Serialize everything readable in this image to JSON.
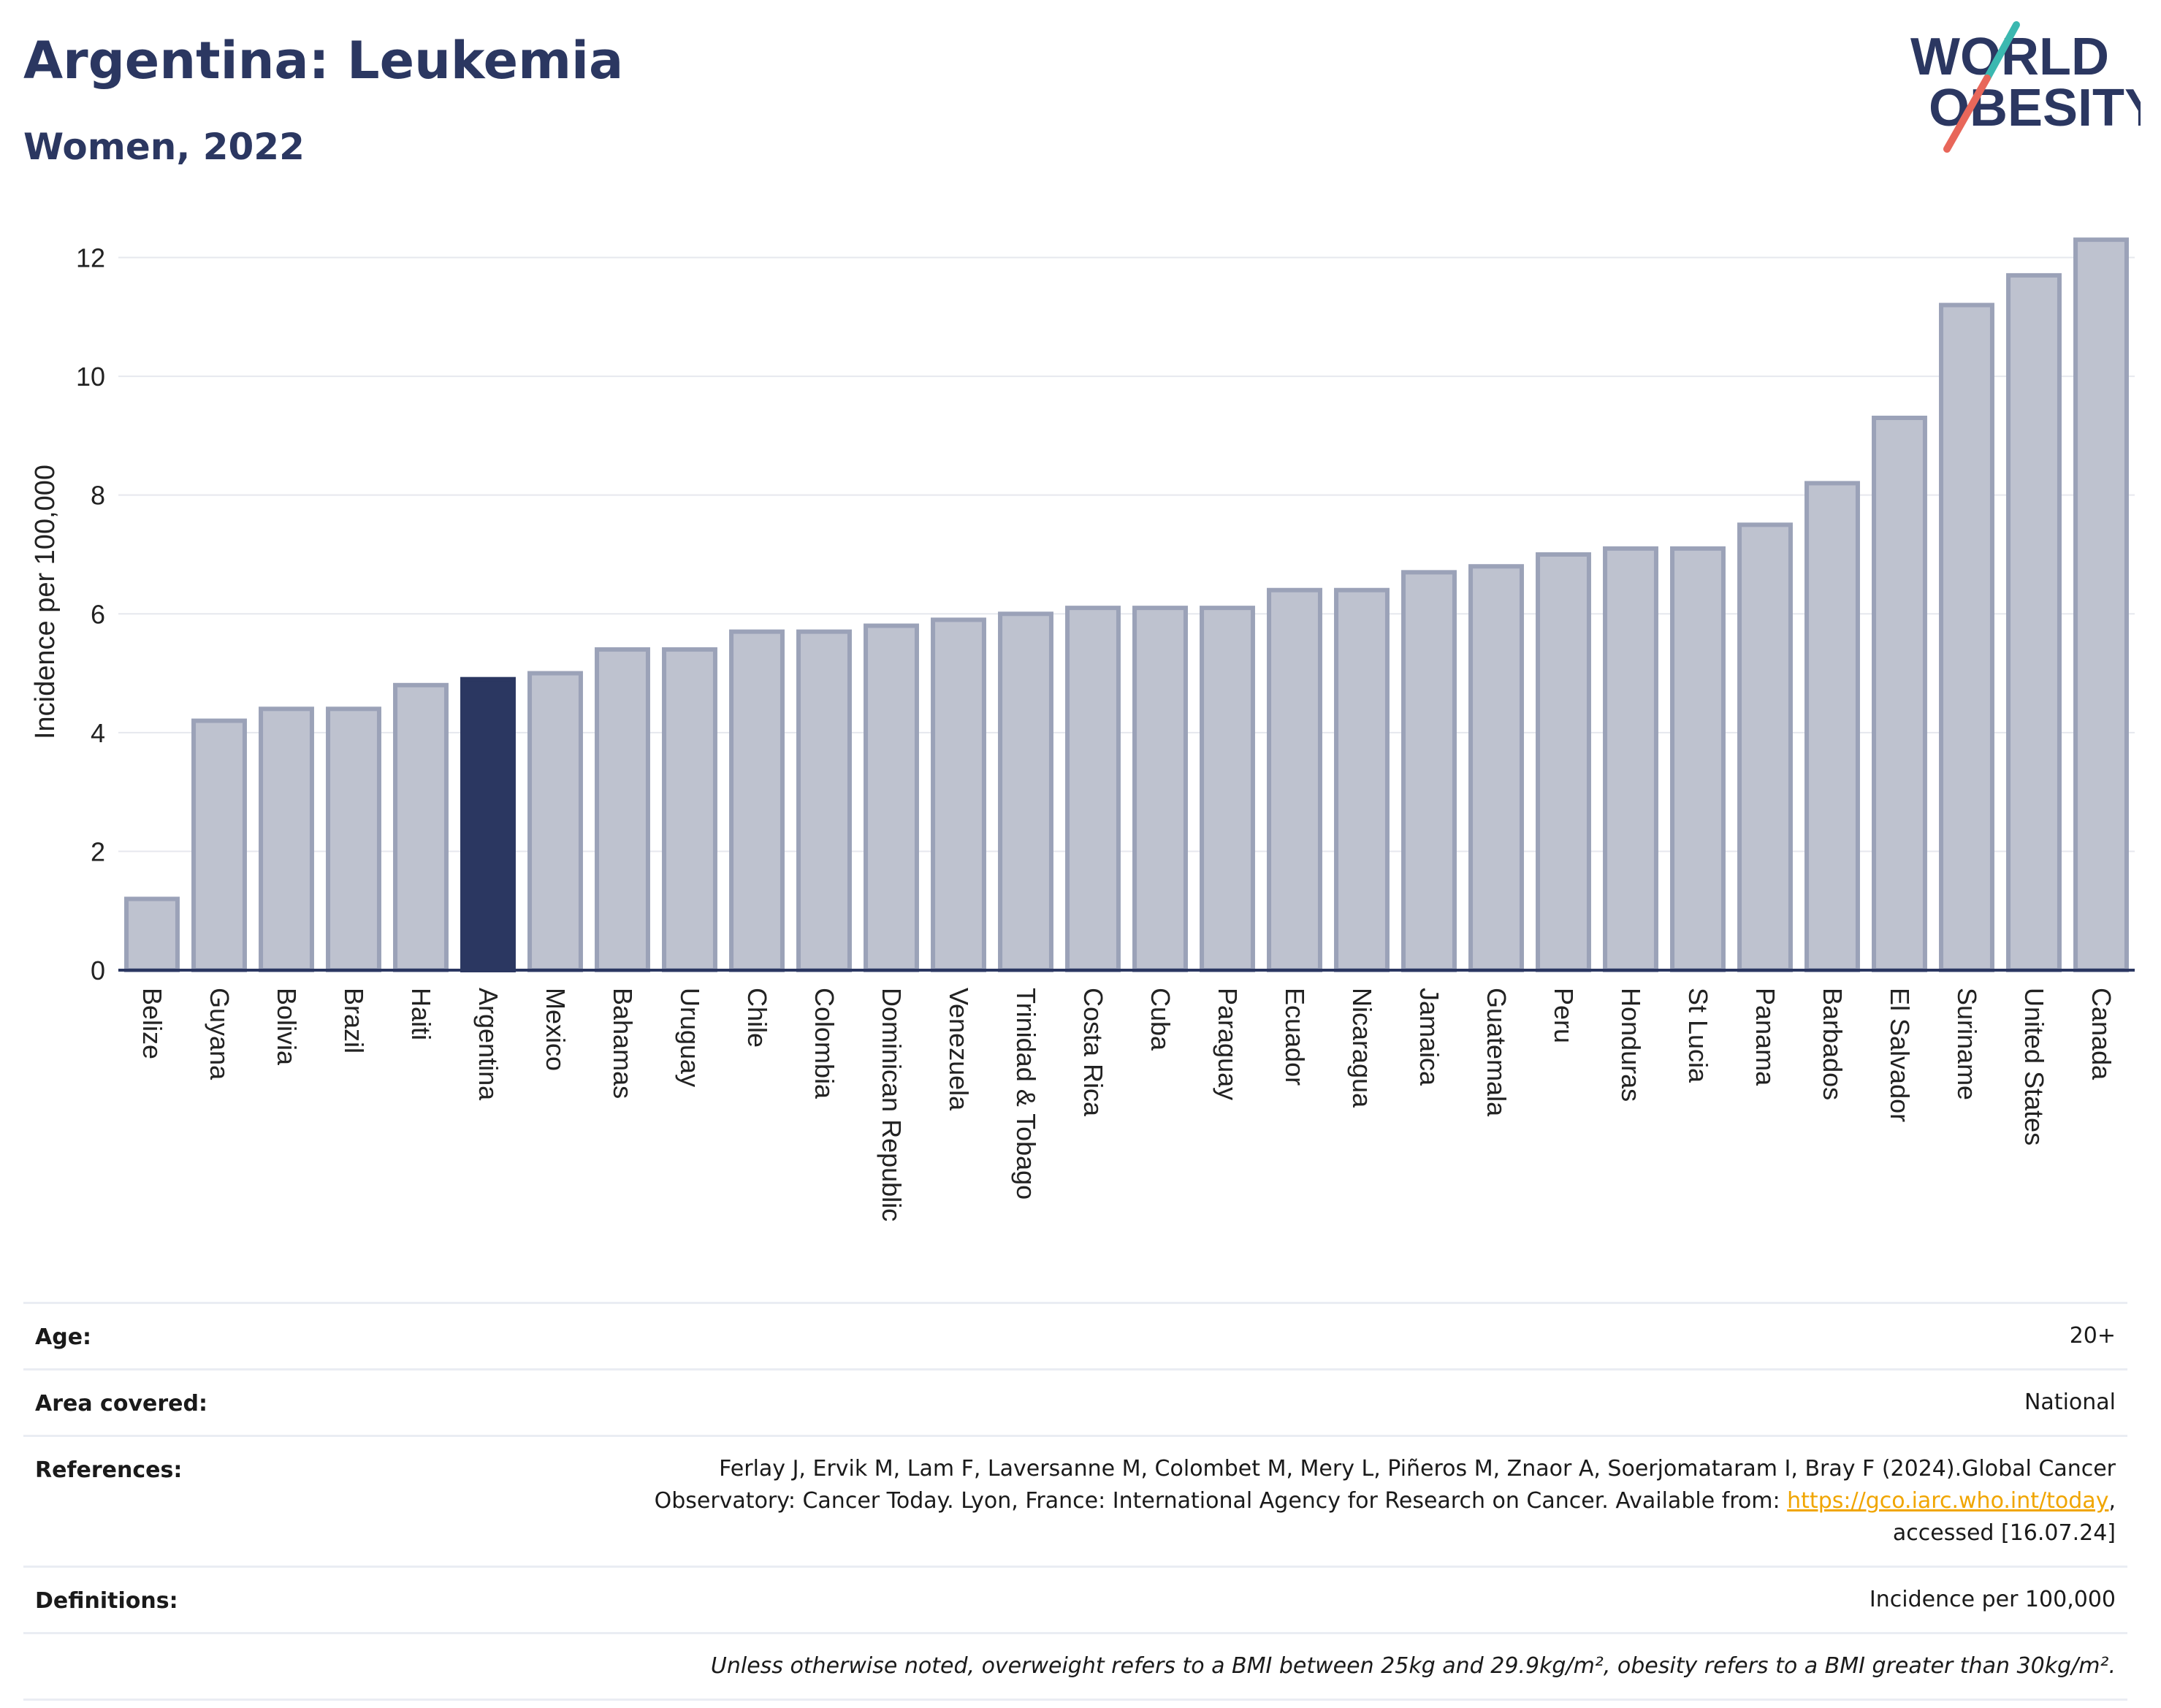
{
  "header": {
    "title": "Argentina: Leukemia",
    "subtitle": "Women, 2022",
    "logo_line1": "WORLD",
    "logo_line2": "OBESITY"
  },
  "chart_data": {
    "type": "bar",
    "title": "Argentina: Leukemia",
    "subtitle": "Women, 2022",
    "xlabel": "",
    "ylabel": "Incidence per 100,000",
    "ylim": [
      0,
      12.4
    ],
    "yticks": [
      0,
      2,
      4,
      6,
      8,
      10,
      12
    ],
    "grid": true,
    "legend": "none",
    "highlight": "Argentina",
    "colors": {
      "default": "#bec2cf",
      "default_border": "#9ba2b8",
      "highlight": "#2b3761"
    },
    "categories": [
      "Belize",
      "Guyana",
      "Bolivia",
      "Brazil",
      "Haiti",
      "Argentina",
      "Mexico",
      "Bahamas",
      "Uruguay",
      "Chile",
      "Colombia",
      "Dominican Republic",
      "Venezuela",
      "Trinidad & Tobago",
      "Costa Rica",
      "Cuba",
      "Paraguay",
      "Ecuador",
      "Nicaragua",
      "Jamaica",
      "Guatemala",
      "Peru",
      "Honduras",
      "St Lucia",
      "Panama",
      "Barbados",
      "El Salvador",
      "Suriname",
      "United States",
      "Canada"
    ],
    "values": [
      1.2,
      4.2,
      4.4,
      4.4,
      4.8,
      4.9,
      5.0,
      5.4,
      5.4,
      5.7,
      5.7,
      5.8,
      5.9,
      6.0,
      6.1,
      6.1,
      6.1,
      6.4,
      6.4,
      6.7,
      6.8,
      7.0,
      7.1,
      7.1,
      7.5,
      8.2,
      9.3,
      11.2,
      11.7,
      12.3
    ]
  },
  "details": {
    "age_label": "Age:",
    "age_value": "20+",
    "area_label": "Area covered:",
    "area_value": "National",
    "references_label": "References:",
    "references_line1": "Ferlay J, Ervik M, Lam F, Laversanne M, Colombet M, Mery L, Piñeros M, Znaor A, Soerjomataram I, Bray F (2024).Global Cancer",
    "references_line2_pre": "Observatory: Cancer Today. Lyon, France: International Agency for Research on Cancer. Available from: ",
    "references_link": "https://gco.iarc.who.int/today",
    "references_line2_post": ",",
    "references_line3": "accessed [16.07.24]",
    "definitions_label": "Definitions:",
    "definitions_value": "Incidence per 100,000",
    "note": "Unless otherwise noted, overweight refers to a BMI between 25kg and 29.9kg/m², obesity refers to a BMI greater than 30kg/m²."
  },
  "colors": {
    "brand_navy": "#2b3761",
    "brand_teal": "#3bb8b0",
    "brand_coral": "#e8675a",
    "link": "#f0a500"
  }
}
